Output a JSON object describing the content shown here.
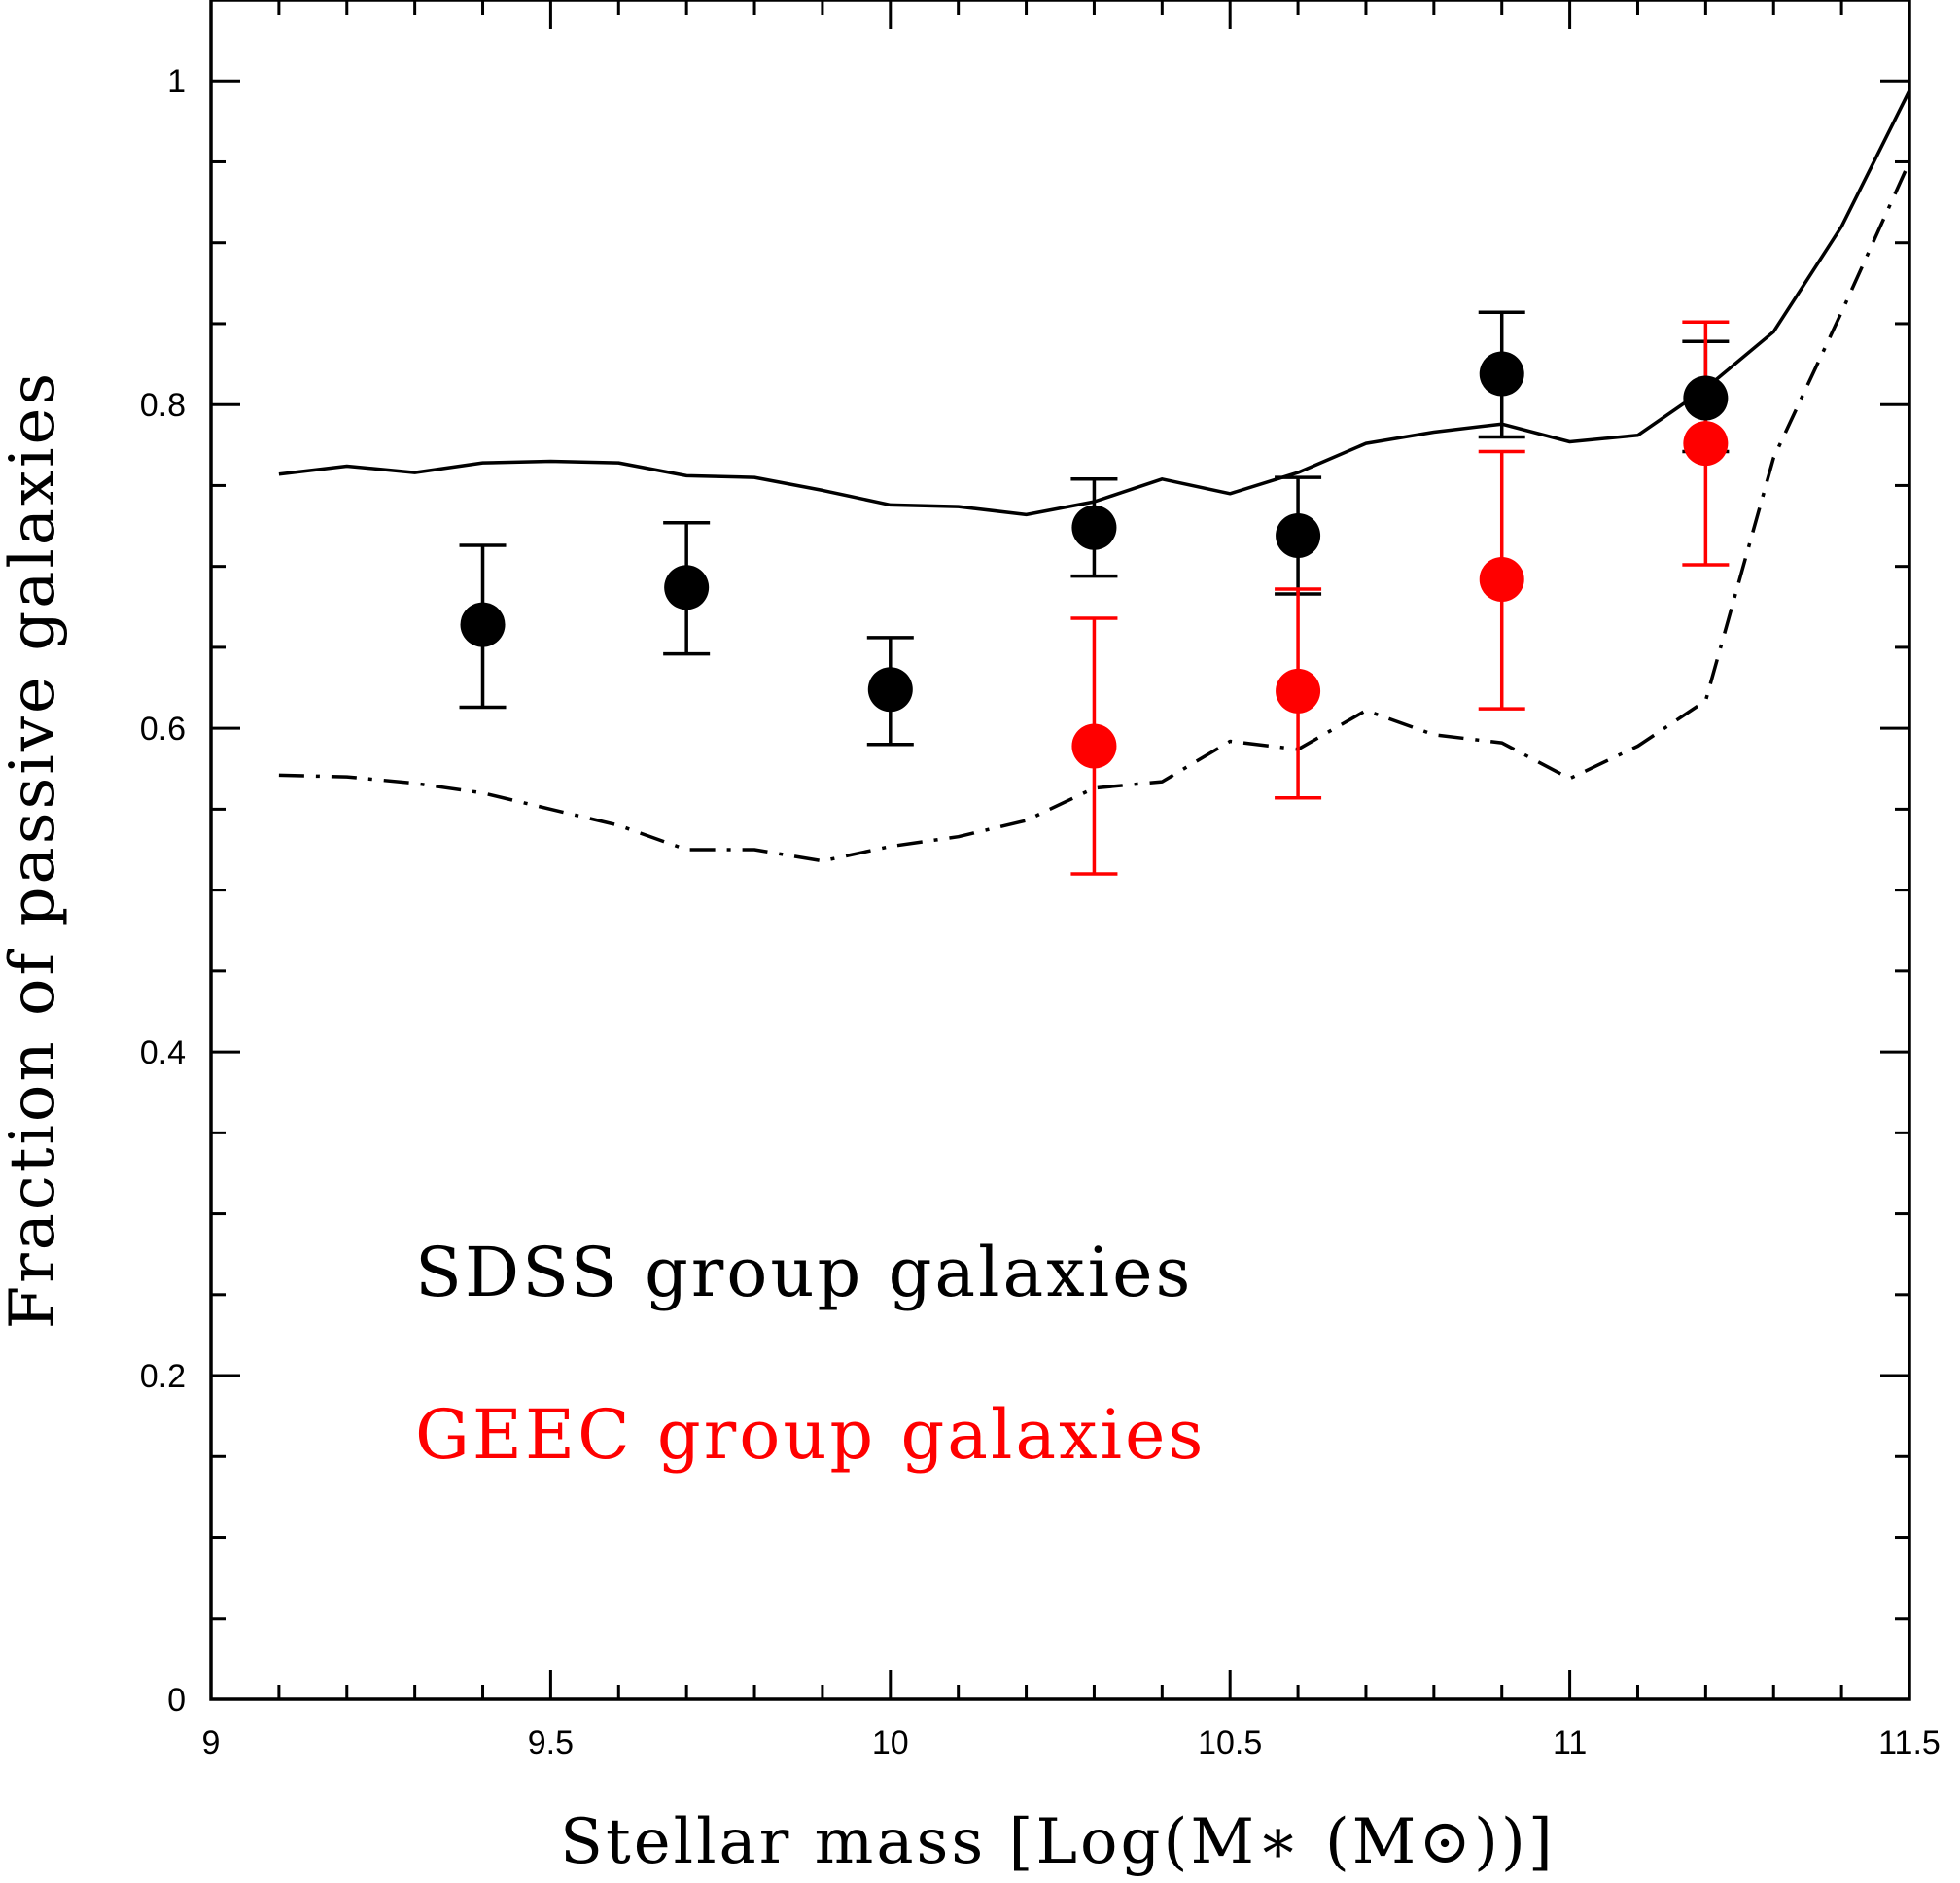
{
  "chart_data": {
    "type": "scatter",
    "xlabel": "Stellar mass [Log(M∗ (M⊙))]",
    "ylabel": "Fraction of passive galaxies",
    "xlim": [
      9,
      11.5
    ],
    "ylim": [
      0,
      1.05
    ],
    "x_ticks": [
      {
        "value": 9,
        "label": "9"
      },
      {
        "value": 9.5,
        "label": "9.5"
      },
      {
        "value": 10,
        "label": "10"
      },
      {
        "value": 10.5,
        "label": "10.5"
      },
      {
        "value": 11,
        "label": "11"
      },
      {
        "value": 11.5,
        "label": "11.5"
      }
    ],
    "y_ticks": [
      {
        "value": 0,
        "label": "0"
      },
      {
        "value": 0.2,
        "label": "0.2"
      },
      {
        "value": 0.4,
        "label": "0.4"
      },
      {
        "value": 0.6,
        "label": "0.6"
      },
      {
        "value": 0.8,
        "label": "0.8"
      },
      {
        "value": 1,
        "label": "1"
      }
    ],
    "x_minor_step": 0.1,
    "y_minor_step": 0.05,
    "grid": false,
    "legend_position": "bottom-left",
    "series": [
      {
        "name": "SDSS group galaxies",
        "kind": "points",
        "color": "#000000",
        "x": [
          9.4,
          9.7,
          10.0,
          10.3,
          10.6,
          10.9,
          11.2
        ],
        "y": [
          0.664,
          0.687,
          0.624,
          0.724,
          0.719,
          0.819,
          0.804
        ],
        "err_low": [
          0.613,
          0.646,
          0.59,
          0.694,
          0.683,
          0.78,
          0.771
        ],
        "err_high": [
          0.713,
          0.727,
          0.656,
          0.754,
          0.755,
          0.857,
          0.839
        ]
      },
      {
        "name": "GEEC group galaxies",
        "kind": "points",
        "color": "#ff0000",
        "x": [
          10.3,
          10.6,
          10.9,
          11.2
        ],
        "y": [
          0.589,
          0.623,
          0.692,
          0.776
        ],
        "err_low": [
          0.51,
          0.557,
          0.612,
          0.701
        ],
        "err_high": [
          0.668,
          0.686,
          0.771,
          0.851
        ]
      },
      {
        "kind": "line",
        "style": "solid",
        "color": "#000000",
        "x": [
          9.1,
          9.2,
          9.3,
          9.4,
          9.5,
          9.6,
          9.7,
          9.8,
          9.9,
          10.0,
          10.1,
          10.2,
          10.3,
          10.4,
          10.5,
          10.6,
          10.7,
          10.8,
          10.9,
          11.0,
          11.1,
          11.2,
          11.3,
          11.4,
          11.5
        ],
        "y": [
          0.757,
          0.762,
          0.758,
          0.764,
          0.765,
          0.764,
          0.756,
          0.755,
          0.747,
          0.738,
          0.737,
          0.732,
          0.74,
          0.754,
          0.745,
          0.758,
          0.776,
          0.783,
          0.788,
          0.777,
          0.781,
          0.81,
          0.845,
          0.91,
          0.994
        ]
      },
      {
        "kind": "line",
        "style": "dash-dot",
        "color": "#000000",
        "x": [
          9.1,
          9.2,
          9.3,
          9.4,
          9.5,
          9.6,
          9.7,
          9.8,
          9.9,
          10.0,
          10.1,
          10.2,
          10.3,
          10.4,
          10.5,
          10.6,
          10.7,
          10.8,
          10.9,
          11.0,
          11.1,
          11.2,
          11.3,
          11.4,
          11.5
        ],
        "y": [
          0.571,
          0.57,
          0.566,
          0.56,
          0.55,
          0.54,
          0.525,
          0.525,
          0.518,
          0.527,
          0.533,
          0.543,
          0.563,
          0.567,
          0.592,
          0.587,
          0.611,
          0.596,
          0.591,
          0.569,
          0.589,
          0.617,
          0.767,
          0.857,
          0.95
        ]
      }
    ]
  }
}
